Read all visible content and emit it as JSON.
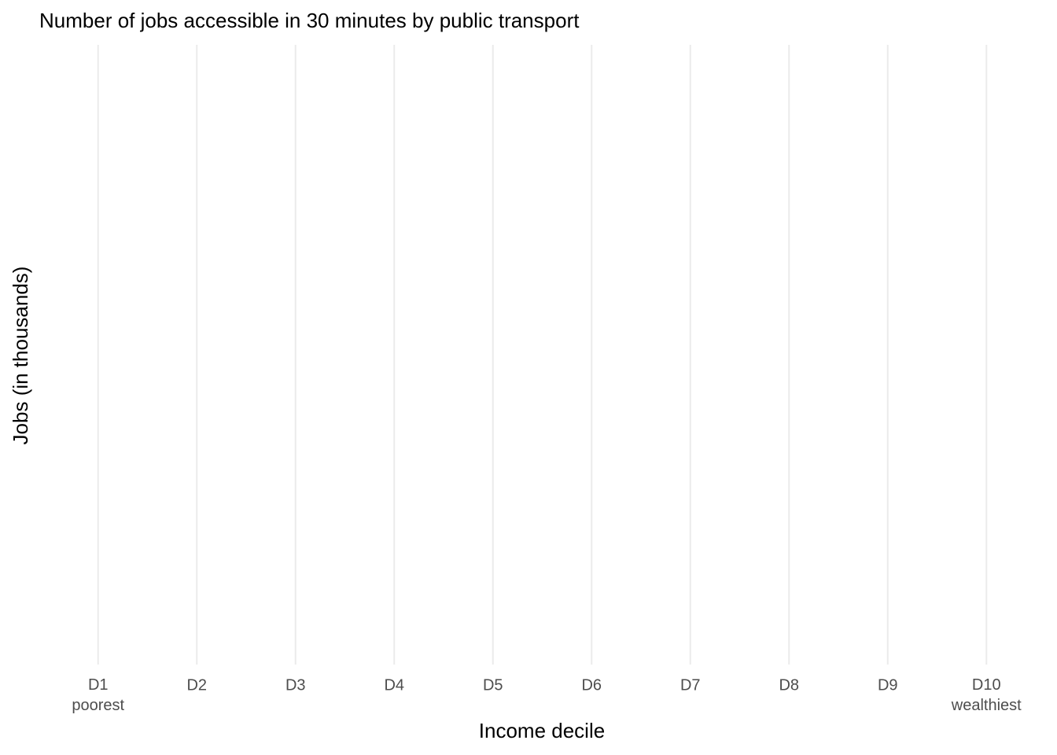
{
  "chart_data": {
    "type": "bar",
    "title": "Number of jobs accessible in 30 minutes by public transport",
    "x_label": "Income decile",
    "y_label": "Jobs (in thousands)",
    "categories": [
      "D1\npoorest",
      "D2",
      "D3",
      "D4",
      "D5",
      "D6",
      "D7",
      "D8",
      "D9",
      "D10\nwealthiest"
    ],
    "grid": true
  }
}
